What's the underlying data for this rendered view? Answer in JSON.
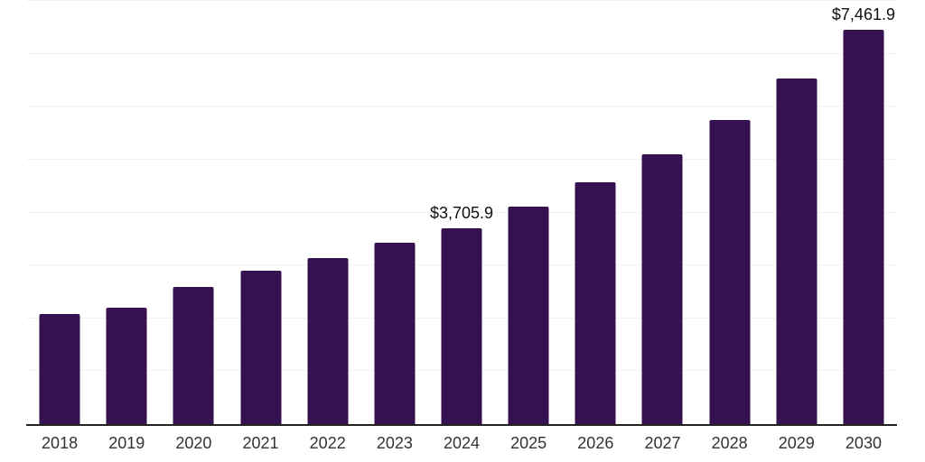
{
  "chart_data": {
    "type": "bar",
    "title": "",
    "xlabel": "",
    "ylabel": "",
    "categories": [
      "2018",
      "2019",
      "2020",
      "2021",
      "2022",
      "2023",
      "2024",
      "2025",
      "2026",
      "2027",
      "2028",
      "2029",
      "2030"
    ],
    "values": [
      2076,
      2200,
      2593,
      2900,
      3139,
      3424,
      3705.9,
      4106,
      4566,
      5105,
      5754,
      6538,
      7461.9
    ],
    "point_labels": [
      "",
      "",
      "",
      "",
      "",
      "",
      "$3,705.9",
      "",
      "",
      "",
      "",
      "",
      "$7,461.9"
    ],
    "ylim": [
      0,
      8000
    ],
    "grid": {
      "interval": 1000,
      "visible": true
    },
    "legend_position": "none",
    "colors": {
      "bar": "#361150",
      "gridline": "#f2f2f2",
      "axis_line": "#222222",
      "tick_label": "#333333",
      "value_label": "#111111",
      "background": "#ffffff"
    }
  }
}
